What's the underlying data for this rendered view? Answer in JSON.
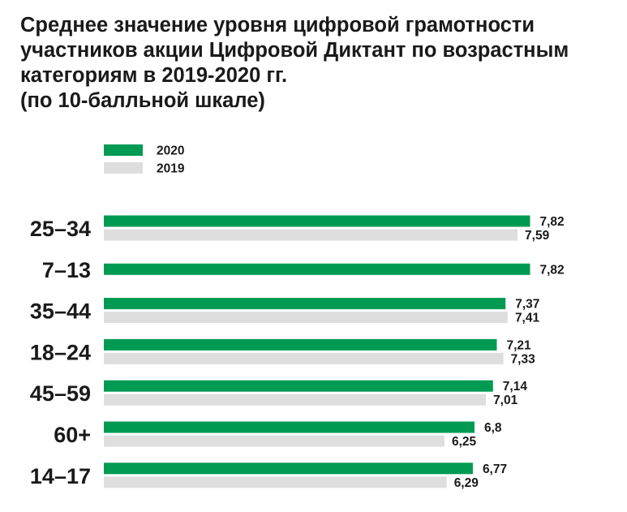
{
  "title_lines": [
    "Среднее значение уровня цифровой грамотности",
    "участников акции Цифровой Диктант по возрастным",
    "категориям в 2019-2020 гг.",
    "(по 10-балльной шкале)"
  ],
  "colors": {
    "2020": "#009a53",
    "2019": "#dedede"
  },
  "chart_data": {
    "type": "bar",
    "orientation": "horizontal",
    "title": "Среднее значение уровня цифровой грамотности участников акции Цифровой Диктант по возрастным категориям в 2019-2020 гг. (по 10-балльной шкале)",
    "categories": [
      "25–34",
      "7–13",
      "35–44",
      "18–24",
      "45–59",
      "60+",
      "14–17"
    ],
    "series": [
      {
        "name": "2020",
        "values": [
          7.82,
          7.82,
          7.37,
          7.21,
          7.14,
          6.8,
          6.77
        ],
        "labels": [
          "7,82",
          "7,82",
          "7,37",
          "7,21",
          "7,14",
          "6,8",
          "6,77"
        ]
      },
      {
        "name": "2019",
        "values": [
          7.59,
          null,
          7.41,
          7.33,
          7.01,
          6.25,
          6.29
        ],
        "labels": [
          "7,59",
          "",
          "7,41",
          "7,33",
          "7,01",
          "6,25",
          "6,29"
        ]
      }
    ],
    "xlim": [
      0,
      10
    ],
    "grid": false,
    "legend": "top-left"
  }
}
